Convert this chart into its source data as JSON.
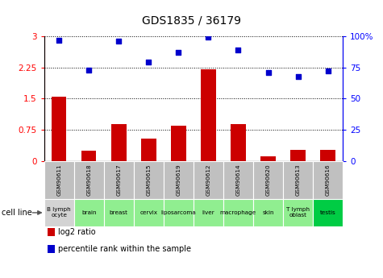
{
  "title": "GDS1835 / 36179",
  "gsm_labels": [
    "GSM90611",
    "GSM90618",
    "GSM90617",
    "GSM90615",
    "GSM90619",
    "GSM90612",
    "GSM90614",
    "GSM90620",
    "GSM90613",
    "GSM90616"
  ],
  "cell_labels": [
    "B lymph\nocyte",
    "brain",
    "breast",
    "cervix",
    "liposarcoma",
    "liver",
    "macrophage",
    "skin",
    "T lymph\noblast",
    "testis"
  ],
  "cell_bg_colors": [
    "#d3d3d3",
    "#90ee90",
    "#90ee90",
    "#90ee90",
    "#90ee90",
    "#90ee90",
    "#90ee90",
    "#90ee90",
    "#90ee90",
    "#00cc44"
  ],
  "log2_ratios": [
    1.55,
    0.25,
    0.9,
    0.55,
    0.85,
    2.2,
    0.9,
    0.12,
    0.28,
    0.28
  ],
  "percentile_ranks": [
    97,
    73,
    96,
    79,
    87,
    99,
    89,
    71,
    68,
    72
  ],
  "bar_color": "#cc0000",
  "dot_color": "#0000cc",
  "ylim_left": [
    0,
    3
  ],
  "ylim_right": [
    0,
    100
  ],
  "yticks_left": [
    0,
    0.75,
    1.5,
    2.25,
    3
  ],
  "yticks_right": [
    0,
    25,
    50,
    75,
    100
  ],
  "yticklabels_left": [
    "0",
    "0.75",
    "1.5",
    "2.25",
    "3"
  ],
  "yticklabels_right": [
    "0",
    "25",
    "50",
    "75",
    "100%"
  ],
  "legend_items": [
    {
      "color": "#cc0000",
      "label": "log2 ratio"
    },
    {
      "color": "#0000cc",
      "label": "percentile rank within the sample"
    }
  ],
  "cell_line_label": "cell line",
  "gsm_bg_color": "#c0c0c0",
  "liposarcoma_label": "liposarcoma",
  "liposarcoma_display": "liposarcoma"
}
